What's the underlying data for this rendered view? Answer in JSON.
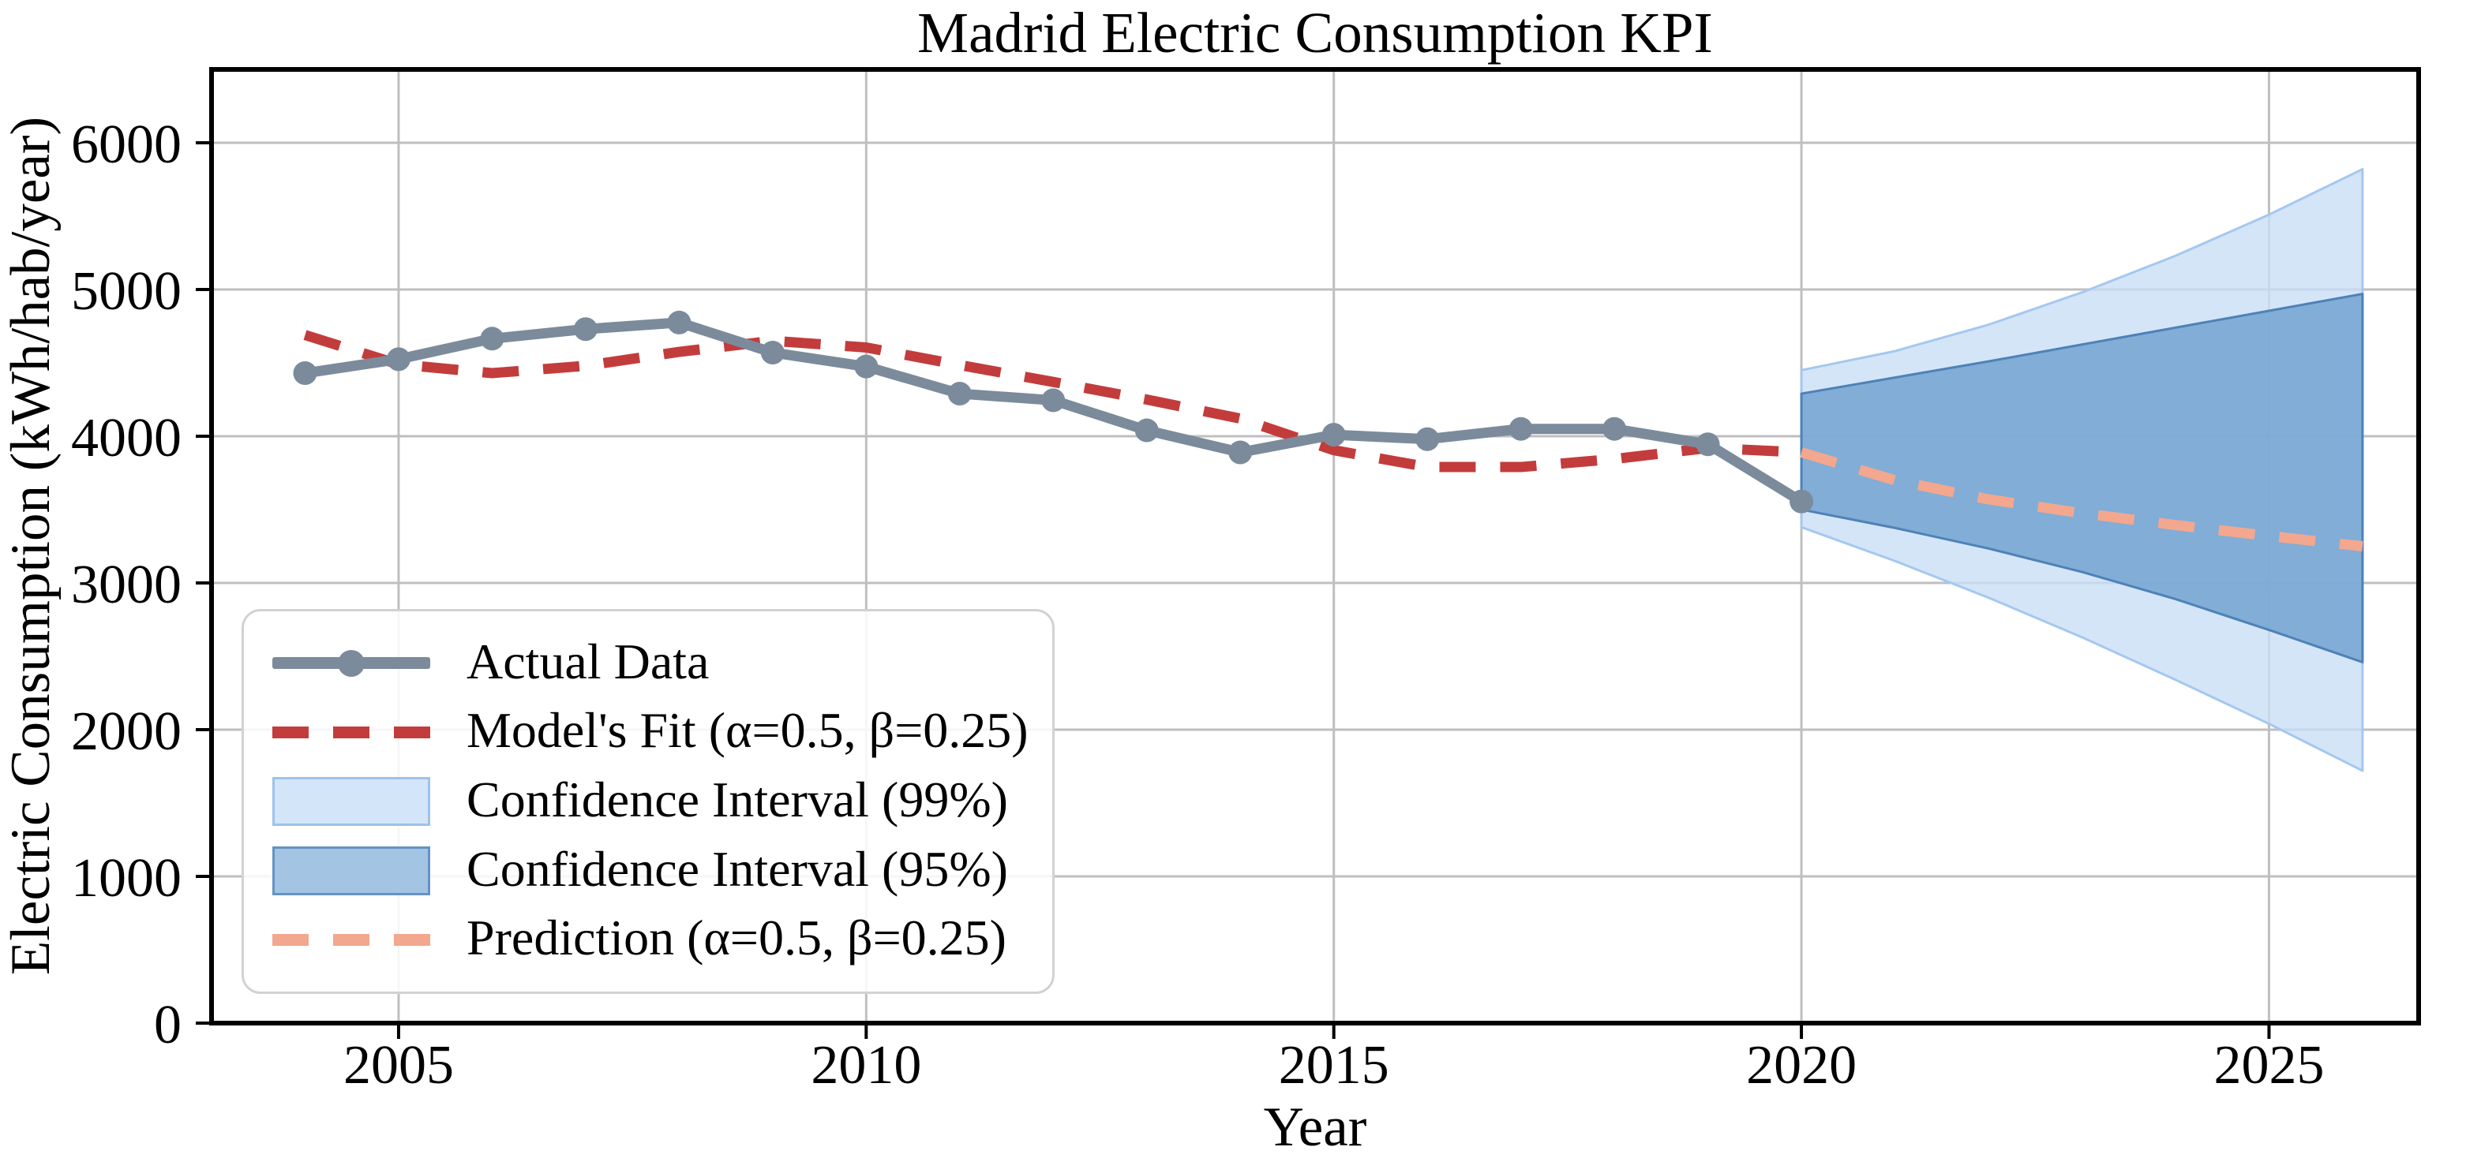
{
  "chart": {
    "title": "Madrid Electric Consumption KPI",
    "xlabel": "Year",
    "ylabel": "Electric Consumption (kWh/hab/year)"
  },
  "legend": {
    "position": "lower left",
    "items": [
      {
        "label": "Actual Data"
      },
      {
        "label": "Model's Fit (α=0.5, β=0.25)"
      },
      {
        "label": "Confidence Interval (99%)"
      },
      {
        "label": "Confidence Interval (95%)"
      },
      {
        "label": "Prediction (α=0.5, β=0.25)"
      }
    ]
  },
  "colors": {
    "actual": "#7b8b9b",
    "fit": "#c33c3c",
    "prediction": "#f3a78e",
    "ci99_fill": "#cbdff6",
    "ci99_edge": "#a4c8ef",
    "ci95_fill": "#78a6d3",
    "ci95_edge": "#4e82b8",
    "grid": "#bfbfbf",
    "spine": "#000000",
    "legend_ci99_fill": "#d3e5f8",
    "legend_ci99_edge": "#9cc3ea",
    "legend_ci95_fill": "#a3c4e2",
    "legend_ci95_edge": "#6593c4"
  },
  "chart_data": {
    "type": "line",
    "title": "Madrid Electric Consumption KPI",
    "xlabel": "Year",
    "ylabel": "Electric Consumption (kWh/hab/year)",
    "xlim": [
      2003,
      2026.6
    ],
    "ylim": [
      0,
      6500
    ],
    "xticks": [
      2005,
      2010,
      2015,
      2020,
      2025
    ],
    "yticks": [
      0,
      1000,
      2000,
      3000,
      4000,
      5000,
      6000
    ],
    "grid": true,
    "legend_position": "lower left",
    "series": [
      {
        "name": "Actual Data",
        "style": "solid",
        "marker": true,
        "color": "#7b8b9b",
        "x": [
          2004,
          2005,
          2006,
          2007,
          2008,
          2009,
          2010,
          2011,
          2012,
          2013,
          2014,
          2015,
          2016,
          2017,
          2018,
          2019,
          2020
        ],
        "values": [
          4430,
          4525,
          4665,
          4730,
          4775,
          4570,
          4475,
          4290,
          4245,
          4040,
          3890,
          4010,
          3980,
          4050,
          4050,
          3945,
          3555
        ]
      },
      {
        "name": "Model's Fit (α=0.5, β=0.25)",
        "style": "dashed",
        "marker": false,
        "color": "#c33c3c",
        "x": [
          2004,
          2005,
          2006,
          2007,
          2008,
          2009,
          2010,
          2011,
          2012,
          2013,
          2014,
          2015,
          2016,
          2017,
          2018,
          2019,
          2020
        ],
        "values": [
          4690,
          4490,
          4430,
          4480,
          4575,
          4650,
          4605,
          4485,
          4370,
          4250,
          4120,
          3905,
          3790,
          3790,
          3845,
          3920,
          3890
        ]
      },
      {
        "name": "Prediction (α=0.5, β=0.25)",
        "style": "dashed",
        "marker": false,
        "color": "#f3a78e",
        "x": [
          2020,
          2021,
          2022,
          2023,
          2024,
          2025,
          2026
        ],
        "values": [
          3890,
          3700,
          3570,
          3475,
          3395,
          3320,
          3250
        ]
      }
    ],
    "bands": [
      {
        "name": "Confidence Interval (99%)",
        "pct": "99",
        "fill": "#cbdff6",
        "opacity": 0.8,
        "edge": "#a4c8ef",
        "x": [
          2020,
          2021,
          2022,
          2023,
          2024,
          2025,
          2026
        ],
        "upper": [
          4450,
          4580,
          4760,
          4980,
          5230,
          5510,
          5820
        ],
        "lower": [
          3380,
          3150,
          2900,
          2630,
          2340,
          2040,
          1720
        ]
      },
      {
        "name": "Confidence Interval (95%)",
        "pct": "95",
        "fill": "#78a6d3",
        "opacity": 0.9,
        "edge": "#4e82b8",
        "x": [
          2020,
          2021,
          2022,
          2023,
          2024,
          2025,
          2026
        ],
        "upper": [
          4290,
          4400,
          4510,
          4625,
          4740,
          4855,
          4970
        ],
        "lower": [
          3500,
          3375,
          3235,
          3075,
          2890,
          2680,
          2460
        ]
      }
    ]
  }
}
